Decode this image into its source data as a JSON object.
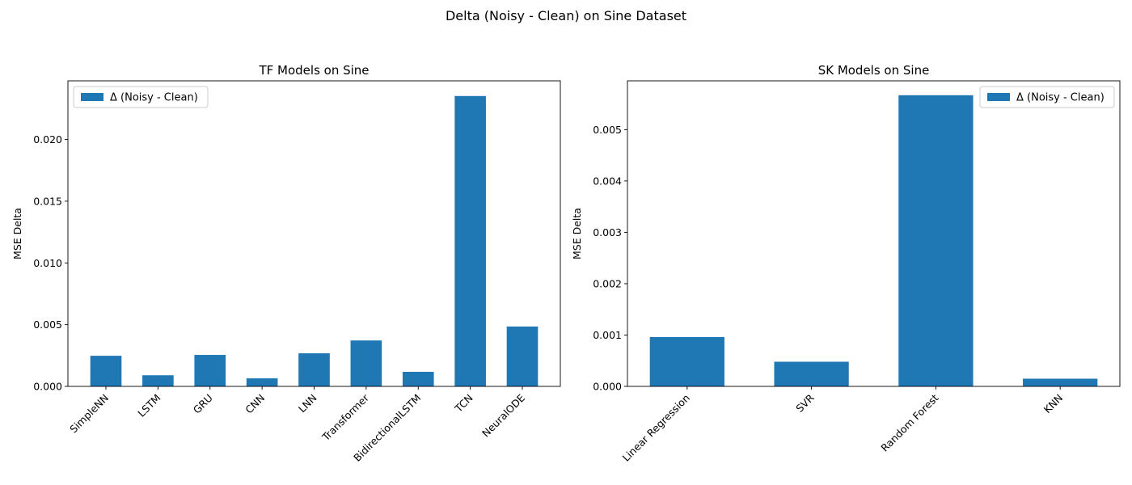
{
  "figure": {
    "suptitle": "Delta (Noisy - Clean) on Sine Dataset"
  },
  "bar_color": "#1f77b4",
  "chart_data": [
    {
      "type": "bar",
      "title": "TF Models on Sine",
      "xlabel": "",
      "ylabel": "MSE Delta",
      "categories": [
        "SimpleNN",
        "LSTM",
        "GRU",
        "CNN",
        "LNN",
        "Transformer",
        "BidirectionalLSTM",
        "TCN",
        "NeuralODE"
      ],
      "series": [
        {
          "name": "Δ (Noisy - Clean)",
          "values": [
            0.00248,
            0.0009,
            0.00255,
            0.00065,
            0.00268,
            0.00372,
            0.00118,
            0.02352,
            0.00485
          ]
        }
      ],
      "ylim": [
        0,
        0.02475
      ],
      "yticks": [
        "0.000",
        "0.005",
        "0.010",
        "0.015",
        "0.020"
      ],
      "ytick_values": [
        0,
        0.005,
        0.01,
        0.015,
        0.02
      ],
      "grid": false,
      "legend": "upper-left"
    },
    {
      "type": "bar",
      "title": "SK Models on Sine",
      "xlabel": "",
      "ylabel": "MSE Delta",
      "categories": [
        "Linear Regression",
        "SVR",
        "Random Forest",
        "KNN"
      ],
      "series": [
        {
          "name": "Δ (Noisy - Clean)",
          "values": [
            0.00096,
            0.00048,
            0.00567,
            0.00015
          ]
        }
      ],
      "ylim": [
        0,
        0.00595
      ],
      "yticks": [
        "0.000",
        "0.001",
        "0.002",
        "0.003",
        "0.004",
        "0.005"
      ],
      "ytick_values": [
        0,
        0.001,
        0.002,
        0.003,
        0.004,
        0.005
      ],
      "grid": false,
      "legend": "upper-right"
    }
  ]
}
